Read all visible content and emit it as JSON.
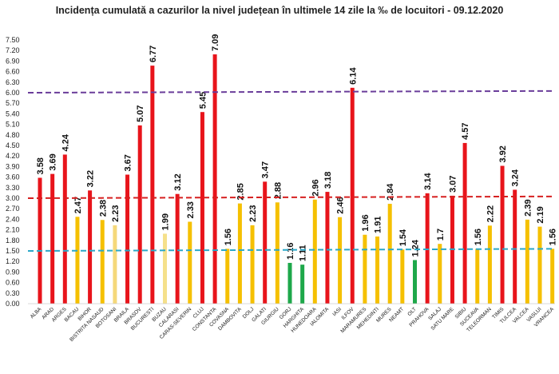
{
  "chart_data": {
    "type": "bar",
    "title": "Incidența cumulată a cazurilor la nivel județean în ultimele 14 zile la ‰ de locuitori - 09.12.2020",
    "xlabel": "",
    "ylabel": "",
    "ylim": [
      0,
      7.5
    ],
    "yticks": [
      "0.00",
      "0.30",
      "0.60",
      "0.90",
      "1.20",
      "1.50",
      "1.80",
      "2.10",
      "2.40",
      "2.70",
      "3.00",
      "3.30",
      "3.60",
      "3.90",
      "4.20",
      "4.50",
      "4.80",
      "5.10",
      "5.40",
      "5.70",
      "6.00",
      "6.30",
      "6.60",
      "6.90",
      "7.20",
      "7.50"
    ],
    "categories": [
      "ALBA",
      "ARAD",
      "ARGES",
      "BACAU",
      "BIHOR",
      "BISTRITA NASAUD",
      "BOTOSANI",
      "BRAILA",
      "BRASOV",
      "BUCURESTI",
      "BUZAU",
      "CALARASI",
      "CARAS-SEVERIN",
      "CLUJ",
      "CONSTANTA",
      "COVASNA",
      "DAMBOVITA",
      "DOLJ",
      "GALATI",
      "GIURGIU",
      "GORJ",
      "HARGHITA",
      "HUNEDOARA",
      "IALOMITA",
      "IASI",
      "ILFOV",
      "MARAMURES",
      "MEHEDINTI",
      "MURES",
      "NEAMT",
      "OLT",
      "PRAHOVA",
      "SALAJ",
      "SATU MARE",
      "SIBIU",
      "SUCEAVA",
      "TELEORMAN",
      "TIMIS",
      "TULCEA",
      "VALCEA",
      "VASLUI",
      "VRANCEA"
    ],
    "values": [
      3.58,
      3.69,
      4.24,
      2.47,
      3.22,
      2.38,
      2.23,
      3.67,
      5.07,
      6.77,
      1.99,
      3.12,
      2.33,
      5.45,
      7.09,
      1.56,
      2.85,
      2.23,
      3.47,
      2.88,
      1.16,
      1.11,
      2.96,
      3.18,
      2.46,
      6.14,
      1.96,
      1.91,
      2.84,
      1.54,
      1.24,
      3.14,
      1.7,
      3.07,
      4.57,
      1.56,
      2.22,
      3.92,
      3.24,
      2.39,
      2.19,
      1.56
    ],
    "value_labels": [
      "3.58",
      "3.69",
      "4.24",
      "2.47",
      "3.22",
      "2.38",
      "2.23",
      "3.67",
      "5.07",
      "6.77",
      "1.99",
      "3.12",
      "2.33",
      "5.45",
      "7.09",
      "1.56",
      "2.85",
      "2.23",
      "3.47",
      "2.88",
      "1.16",
      "1.11",
      "2.96",
      "3.18",
      "2.46",
      "6.14",
      "1.96",
      "1.91",
      "2.84",
      "1.54",
      "1.24",
      "3.14",
      "1.7",
      "3.07",
      "4.57",
      "1.56",
      "2.22",
      "3.92",
      "3.24",
      "2.39",
      "2.19",
      "1.56"
    ],
    "bar_colors": [
      "#e8141b",
      "#e8141b",
      "#e8141b",
      "#f5c000",
      "#e8141b",
      "#f5c000",
      "#f5d87a",
      "#e8141b",
      "#e8141b",
      "#e8141b",
      "#f5e08a",
      "#e8141b",
      "#f5c000",
      "#e8141b",
      "#e8141b",
      "#f5c000",
      "#f5c000",
      "#f5c000",
      "#e8141b",
      "#f5c000",
      "#1ea84a",
      "#1ea84a",
      "#f5c000",
      "#e8141b",
      "#f5c000",
      "#e8141b",
      "#f5c000",
      "#f5c000",
      "#f5c000",
      "#f5c000",
      "#1ea84a",
      "#e8141b",
      "#f5c000",
      "#e8141b",
      "#e8141b",
      "#f5c000",
      "#f5c000",
      "#e8141b",
      "#e8141b",
      "#f5c000",
      "#f5c000",
      "#f5c000"
    ],
    "reference_lines": [
      {
        "value": 6.0,
        "color": "#6a3d9a",
        "y_at_end": 6.05
      },
      {
        "value": 3.0,
        "color": "#d62020",
        "y_at_end": 3.05
      },
      {
        "value": 1.5,
        "color": "#2aa8c8",
        "y_at_end": 1.56
      }
    ],
    "grid": false,
    "legend": "none"
  }
}
